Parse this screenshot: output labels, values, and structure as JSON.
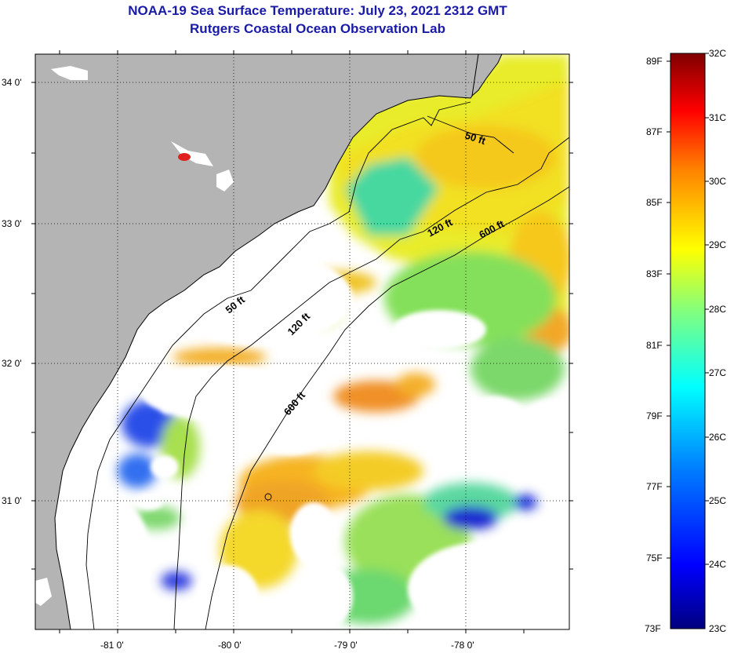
{
  "title": {
    "line1": "NOAA-19 Sea Surface Temperature:  July 23, 2021 2312 GMT",
    "line2": "Rutgers Coastal Ocean Observation Lab"
  },
  "map": {
    "lat_labels": [
      "34 0'",
      "33 0'",
      "32 0'",
      "31 0'"
    ],
    "lon_labels": [
      "-81 0'",
      "-80 0'",
      "-79 0'",
      "-78 0'"
    ],
    "isobath_labels": [
      "50 ft",
      "120 ft",
      "600 ft",
      "50 ft",
      "120 ft",
      "600 ft"
    ],
    "colors": {
      "land": "#b4b4b4",
      "cloud": "#ffffff"
    }
  },
  "colorbar": {
    "fahrenheit_labels": [
      "89F",
      "87F",
      "85F",
      "83F",
      "81F",
      "79F",
      "77F",
      "75F",
      "73F"
    ],
    "celsius_labels": [
      "32C",
      "31C",
      "30C",
      "29C",
      "28C",
      "27C",
      "26C",
      "25C",
      "24C",
      "23C"
    ],
    "colors": [
      "#00007f",
      "#0000ff",
      "#0080ff",
      "#00ffff",
      "#80ff80",
      "#ffff00",
      "#ff8000",
      "#ff0000",
      "#7f0000"
    ]
  }
}
